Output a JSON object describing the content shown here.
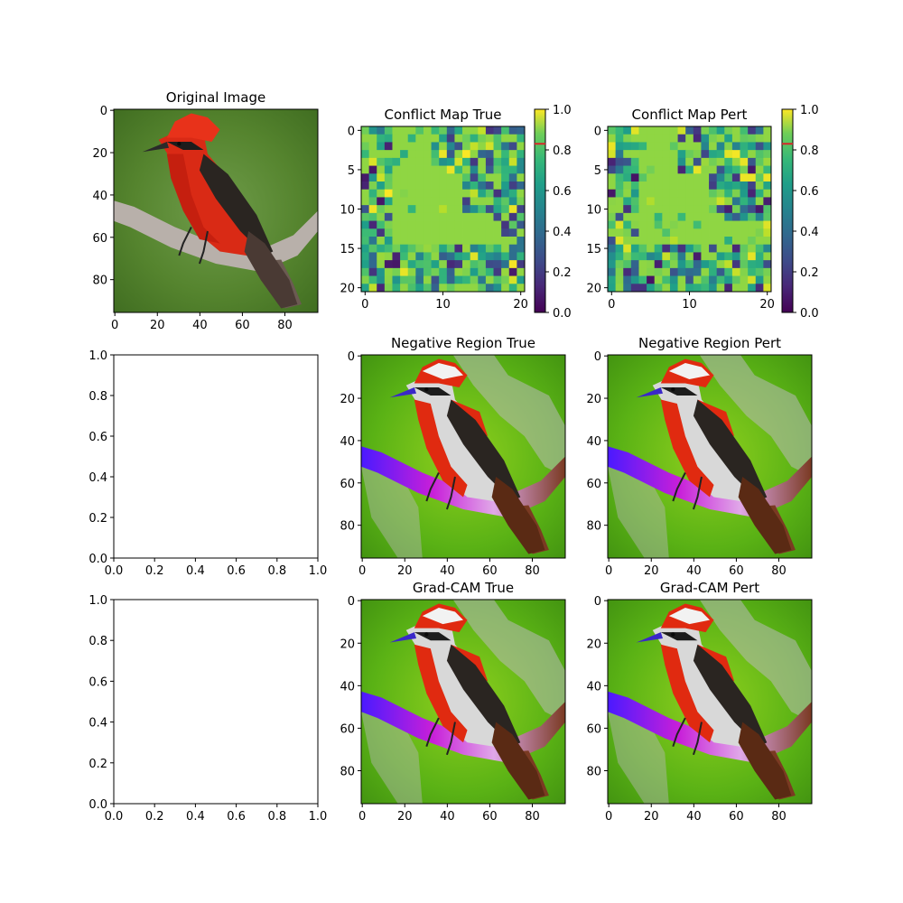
{
  "chart_data": [
    {
      "id": "original",
      "type": "image",
      "title": "Original Image",
      "content": "bird",
      "xticks": [
        0,
        20,
        40,
        60,
        80
      ],
      "yticks": [
        0,
        20,
        40,
        60,
        80
      ],
      "xlim": [
        0,
        95
      ],
      "ylim": [
        0,
        95
      ]
    },
    {
      "id": "conflict_true",
      "type": "heatmap",
      "title": "Conflict Map True",
      "xticks": [
        0,
        10,
        20
      ],
      "yticks": [
        0,
        5,
        10,
        15,
        20
      ],
      "grid_size": [
        21,
        21
      ],
      "colormap": "viridis",
      "vmin": 0.0,
      "vmax": 1.0,
      "colorbar_ticks": [
        "0.0",
        "0.2",
        "0.4",
        "0.6",
        "0.8",
        "1.0"
      ],
      "colorbar_marker": 0.83,
      "dominant_value": 0.83
    },
    {
      "id": "conflict_pert",
      "type": "heatmap",
      "title": "Conflict Map Pert",
      "xticks": [
        0,
        10,
        20
      ],
      "yticks": [
        0,
        5,
        10,
        15,
        20
      ],
      "grid_size": [
        21,
        21
      ],
      "colormap": "viridis",
      "vmin": 0.0,
      "vmax": 1.0,
      "colorbar_ticks": [
        "0.0",
        "0.2",
        "0.4",
        "0.6",
        "0.8",
        "1.0"
      ],
      "colorbar_marker": 0.83,
      "dominant_value": 0.83
    },
    {
      "id": "empty_1",
      "type": "empty",
      "title": "",
      "xticks": [
        "0.0",
        "0.2",
        "0.4",
        "0.6",
        "0.8",
        "1.0"
      ],
      "yticks": [
        "0.0",
        "0.2",
        "0.4",
        "0.6",
        "0.8",
        "1.0"
      ],
      "xlim": [
        0,
        1
      ],
      "ylim": [
        0,
        1
      ]
    },
    {
      "id": "neg_true",
      "type": "image",
      "title": "Negative Region True",
      "content": "bird-overlay",
      "xticks": [
        0,
        20,
        40,
        60,
        80
      ],
      "yticks": [
        0,
        20,
        40,
        60,
        80
      ]
    },
    {
      "id": "neg_pert",
      "type": "image",
      "title": "Negative Region Pert",
      "content": "bird-overlay",
      "xticks": [
        0,
        20,
        40,
        60,
        80
      ],
      "yticks": [
        0,
        20,
        40,
        60,
        80
      ]
    },
    {
      "id": "empty_2",
      "type": "empty",
      "title": "",
      "xticks": [
        "0.0",
        "0.2",
        "0.4",
        "0.6",
        "0.8",
        "1.0"
      ],
      "yticks": [
        "0.0",
        "0.2",
        "0.4",
        "0.6",
        "0.8",
        "1.0"
      ],
      "xlim": [
        0,
        1
      ],
      "ylim": [
        0,
        1
      ]
    },
    {
      "id": "gradcam_true",
      "type": "image",
      "title": "Grad-CAM True",
      "content": "bird-overlay",
      "xticks": [
        0,
        20,
        40,
        60,
        80
      ],
      "yticks": [
        0,
        20,
        40,
        60,
        80
      ]
    },
    {
      "id": "gradcam_pert",
      "type": "image",
      "title": "Grad-CAM Pert",
      "content": "bird-overlay",
      "xticks": [
        0,
        20,
        40,
        60,
        80
      ],
      "yticks": [
        0,
        20,
        40,
        60,
        80
      ]
    }
  ],
  "colors": {
    "axis": "#000000",
    "marker": "#d62728"
  }
}
